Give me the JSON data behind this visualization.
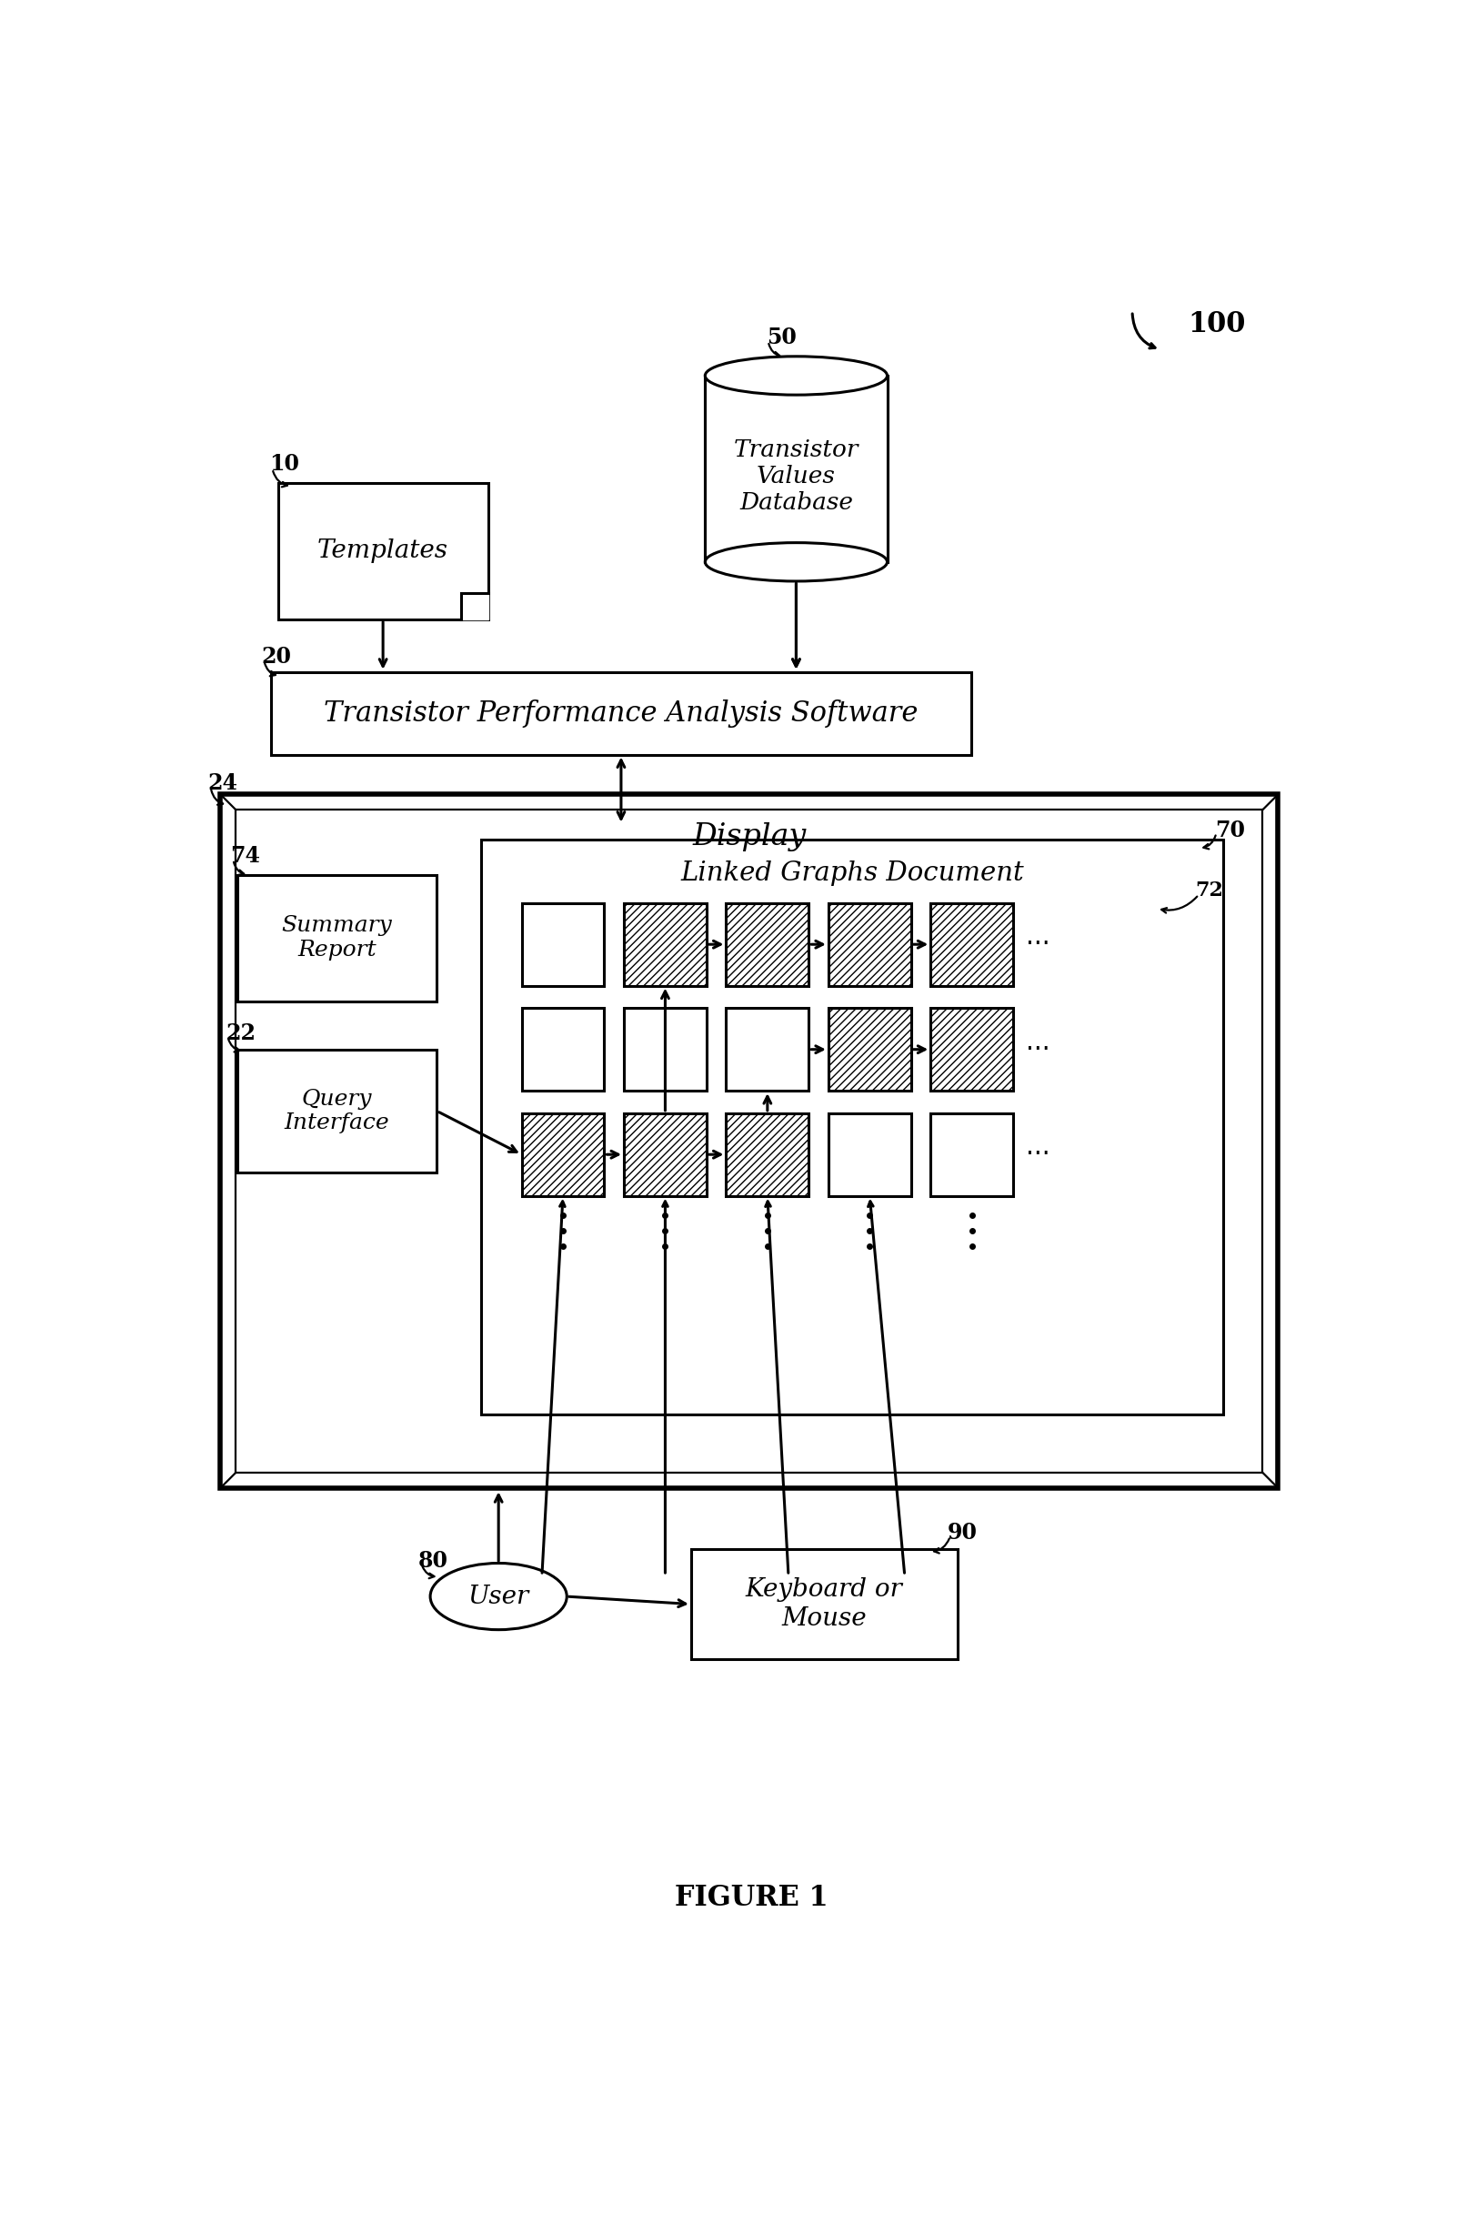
{
  "bg_color": "#ffffff",
  "fig_label": "FIGURE 1",
  "label_100": "100",
  "label_50": "50",
  "label_10": "10",
  "label_20": "20",
  "label_24": "24",
  "label_74": "74",
  "label_22": "22",
  "label_70": "70",
  "label_72": "72",
  "label_80": "80",
  "label_90": "90",
  "text_templates": "Templates",
  "text_tvdb": "Transistor\nValues\nDatabase",
  "text_tpas": "Transistor Performance Analysis Software",
  "text_display": "Display",
  "text_lgd": "Linked Graphs Document",
  "text_summary": "Summary\nReport",
  "text_query": "Query\nInterface",
  "text_user": "User",
  "text_keyboard": "Keyboard or\nMouse"
}
